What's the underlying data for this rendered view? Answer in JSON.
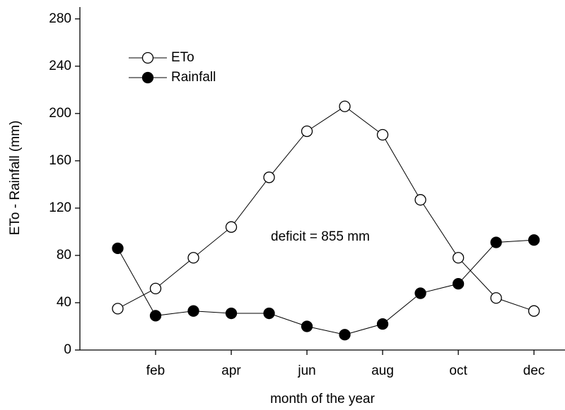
{
  "chart_data": {
    "type": "line",
    "x": [
      1,
      2,
      3,
      4,
      5,
      6,
      7,
      8,
      9,
      10,
      11,
      12
    ],
    "series": [
      {
        "name": "ETo",
        "color": "#000000",
        "marker": "open",
        "values": [
          35,
          52,
          78,
          104,
          146,
          185,
          206,
          182,
          127,
          78,
          44,
          33
        ]
      },
      {
        "name": "Rainfall",
        "color": "#000000",
        "marker": "filled",
        "values": [
          86,
          29,
          33,
          31,
          31,
          20,
          13,
          22,
          48,
          56,
          91,
          93
        ]
      }
    ],
    "xlabel": "month of the year",
    "ylabel": "ETo - Rainfall (mm)",
    "annotation": "deficit = 855 mm",
    "xlim": [
      0,
      12.82
    ],
    "xticks": [
      {
        "value": 2,
        "label": "feb"
      },
      {
        "value": 4,
        "label": "apr"
      },
      {
        "value": 6,
        "label": "jun"
      },
      {
        "value": 8,
        "label": "aug"
      },
      {
        "value": 10,
        "label": "oct"
      },
      {
        "value": 12,
        "label": "dec"
      }
    ],
    "ylim": [
      0,
      290
    ],
    "yticks": [
      0,
      40,
      80,
      120,
      160,
      200,
      240,
      280
    ],
    "legend": "upper left"
  }
}
